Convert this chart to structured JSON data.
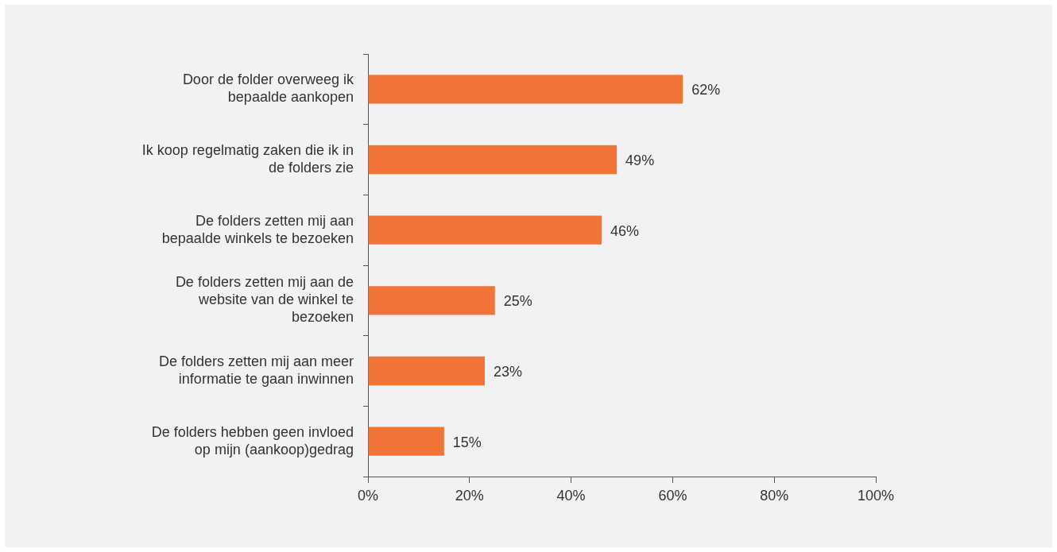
{
  "chart_data": {
    "type": "bar",
    "orientation": "horizontal",
    "categories": [
      "Door de folder overweeg ik bepaalde aankopen",
      "Ik koop regelmatig zaken die ik in de folders zie",
      "De folders zetten mij aan bepaalde winkels te bezoeken",
      "De folders zetten mij aan de website van de winkel te bezoeken",
      "De folders zetten mij aan meer informatie te gaan inwinnen",
      "De folders hebben geen invloed op mijn (aankoop)gedrag"
    ],
    "values": [
      62,
      49,
      46,
      25,
      23,
      15
    ],
    "value_labels": [
      "62%",
      "49%",
      "46%",
      "25%",
      "23%",
      "15%"
    ],
    "color": "#f07438",
    "xlim": [
      0,
      100
    ],
    "xticks": [
      {
        "value": 0,
        "label": "0%"
      },
      {
        "value": 20,
        "label": "20%"
      },
      {
        "value": 40,
        "label": "40%"
      },
      {
        "value": 60,
        "label": "60%"
      },
      {
        "value": 80,
        "label": "80%"
      },
      {
        "value": 100,
        "label": "100%"
      }
    ],
    "grid": false,
    "legend": false
  }
}
